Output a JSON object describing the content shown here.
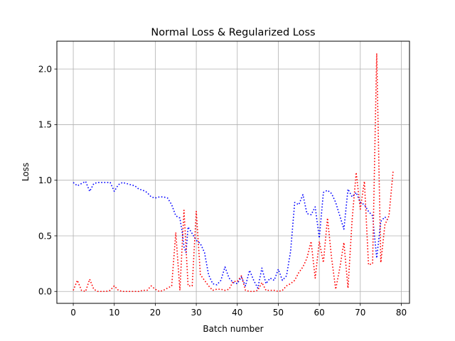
{
  "chart_data": {
    "type": "line",
    "title": "Normal Loss & Regularized Loss",
    "xlabel": "Batch number",
    "ylabel": "Loss",
    "xlim": [
      -4,
      82
    ],
    "ylim": [
      -0.107,
      2.25
    ],
    "xticks": [
      0,
      10,
      20,
      30,
      40,
      50,
      60,
      70,
      80
    ],
    "yticks": [
      0.0,
      0.5,
      1.0,
      1.5,
      2.0
    ],
    "xtick_labels": [
      "0",
      "10",
      "20",
      "30",
      "40",
      "50",
      "60",
      "70",
      "80"
    ],
    "ytick_labels": [
      "0.0",
      "0.5",
      "1.0",
      "1.5",
      "2.0"
    ],
    "grid": true,
    "line_style": "dotted",
    "series": [
      {
        "color": "#0000ff",
        "points": [
          [
            0,
            0.98
          ],
          [
            1,
            0.95
          ],
          [
            2,
            0.97
          ],
          [
            3,
            0.99
          ],
          [
            4,
            0.9
          ],
          [
            5,
            0.97
          ],
          [
            6,
            0.98
          ],
          [
            7,
            0.98
          ],
          [
            8,
            0.98
          ],
          [
            9,
            0.98
          ],
          [
            10,
            0.9
          ],
          [
            11,
            0.96
          ],
          [
            12,
            0.98
          ],
          [
            13,
            0.97
          ],
          [
            14,
            0.96
          ],
          [
            15,
            0.95
          ],
          [
            16,
            0.92
          ],
          [
            17,
            0.91
          ],
          [
            18,
            0.89
          ],
          [
            19,
            0.85
          ],
          [
            20,
            0.84
          ],
          [
            21,
            0.85
          ],
          [
            22,
            0.85
          ],
          [
            23,
            0.84
          ],
          [
            24,
            0.78
          ],
          [
            25,
            0.68
          ],
          [
            26,
            0.66
          ],
          [
            26.5,
            0.55
          ],
          [
            27,
            0.4
          ],
          [
            27.5,
            0.35
          ],
          [
            28,
            0.58
          ],
          [
            29,
            0.52
          ],
          [
            30,
            0.46
          ],
          [
            31,
            0.43
          ],
          [
            32,
            0.35
          ],
          [
            33,
            0.15
          ],
          [
            34,
            0.07
          ],
          [
            35,
            0.06
          ],
          [
            36,
            0.1
          ],
          [
            37,
            0.22
          ],
          [
            38,
            0.12
          ],
          [
            39,
            0.08
          ],
          [
            40,
            0.07
          ],
          [
            41,
            0.13
          ],
          [
            42,
            0.05
          ],
          [
            43,
            0.19
          ],
          [
            44,
            0.1
          ],
          [
            45,
            0.03
          ],
          [
            46,
            0.21
          ],
          [
            47,
            0.07
          ],
          [
            48,
            0.12
          ],
          [
            49,
            0.1
          ],
          [
            50,
            0.2
          ],
          [
            51,
            0.1
          ],
          [
            52,
            0.14
          ],
          [
            53,
            0.36
          ],
          [
            54,
            0.8
          ],
          [
            55,
            0.78
          ],
          [
            56,
            0.87
          ],
          [
            57,
            0.7
          ],
          [
            58,
            0.69
          ],
          [
            59,
            0.76
          ],
          [
            60,
            0.48
          ],
          [
            61,
            0.89
          ],
          [
            62,
            0.91
          ],
          [
            63,
            0.88
          ],
          [
            64,
            0.8
          ],
          [
            65,
            0.68
          ],
          [
            66,
            0.56
          ],
          [
            67,
            0.92
          ],
          [
            68,
            0.85
          ],
          [
            69,
            0.89
          ],
          [
            70,
            0.8
          ],
          [
            71,
            0.78
          ],
          [
            72,
            0.72
          ],
          [
            73,
            0.68
          ],
          [
            74,
            0.3
          ],
          [
            75,
            0.63
          ],
          [
            76,
            0.67
          ],
          [
            77,
            0.63
          ]
        ]
      },
      {
        "color": "#ff0000",
        "points": [
          [
            0,
            0.01
          ],
          [
            1,
            0.1
          ],
          [
            2,
            0.01
          ],
          [
            3,
            0.0
          ],
          [
            4,
            0.11
          ],
          [
            5,
            0.02
          ],
          [
            6,
            0.0
          ],
          [
            7,
            0.0
          ],
          [
            8,
            0.0
          ],
          [
            9,
            0.01
          ],
          [
            10,
            0.05
          ],
          [
            11,
            0.01
          ],
          [
            12,
            0.0
          ],
          [
            13,
            0.0
          ],
          [
            14,
            0.0
          ],
          [
            15,
            0.0
          ],
          [
            16,
            0.0
          ],
          [
            17,
            0.01
          ],
          [
            18,
            0.01
          ],
          [
            19,
            0.05
          ],
          [
            20,
            0.02
          ],
          [
            21,
            0.0
          ],
          [
            22,
            0.01
          ],
          [
            23,
            0.03
          ],
          [
            24,
            0.05
          ],
          [
            25,
            0.53
          ],
          [
            26,
            0.01
          ],
          [
            27,
            0.73
          ],
          [
            28,
            0.05
          ],
          [
            29,
            0.05
          ],
          [
            30,
            0.72
          ],
          [
            31,
            0.15
          ],
          [
            32,
            0.1
          ],
          [
            33,
            0.05
          ],
          [
            34,
            0.01
          ],
          [
            35,
            0.02
          ],
          [
            36,
            0.02
          ],
          [
            37,
            0.01
          ],
          [
            38,
            0.02
          ],
          [
            39,
            0.09
          ],
          [
            40,
            0.09
          ],
          [
            41,
            0.14
          ],
          [
            42,
            0.01
          ],
          [
            43,
            0.0
          ],
          [
            44,
            0.0
          ],
          [
            45,
            0.01
          ],
          [
            46,
            0.08
          ],
          [
            47,
            0.01
          ],
          [
            48,
            0.01
          ],
          [
            49,
            0.01
          ],
          [
            50,
            0.0
          ],
          [
            51,
            0.01
          ],
          [
            52,
            0.05
          ],
          [
            53,
            0.07
          ],
          [
            54,
            0.1
          ],
          [
            55,
            0.17
          ],
          [
            56,
            0.22
          ],
          [
            57,
            0.3
          ],
          [
            58,
            0.45
          ],
          [
            59,
            0.12
          ],
          [
            60,
            0.45
          ],
          [
            61,
            0.26
          ],
          [
            62,
            0.66
          ],
          [
            63,
            0.3
          ],
          [
            64,
            0.02
          ],
          [
            65,
            0.21
          ],
          [
            66,
            0.44
          ],
          [
            67,
            0.03
          ],
          [
            68,
            0.64
          ],
          [
            69,
            1.07
          ],
          [
            70,
            0.74
          ],
          [
            71,
            0.99
          ],
          [
            72,
            0.24
          ],
          [
            73,
            0.25
          ],
          [
            74,
            2.14
          ],
          [
            75,
            0.26
          ],
          [
            76,
            0.6
          ],
          [
            77,
            0.68
          ],
          [
            78,
            1.08
          ]
        ]
      }
    ]
  }
}
